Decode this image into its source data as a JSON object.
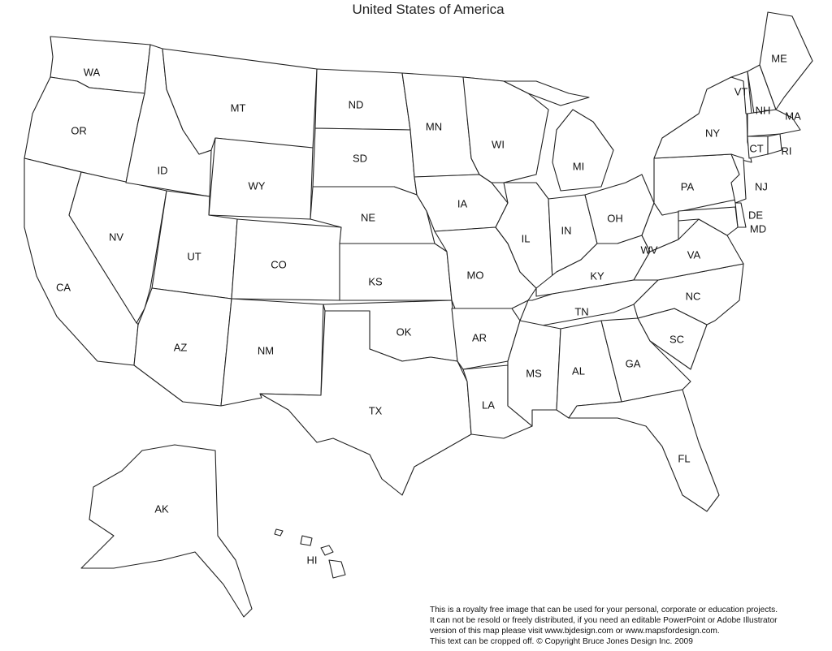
{
  "title": "United States of America",
  "states": [
    {
      "code": "WA"
    },
    {
      "code": "OR"
    },
    {
      "code": "CA"
    },
    {
      "code": "NV"
    },
    {
      "code": "ID"
    },
    {
      "code": "MT"
    },
    {
      "code": "WY"
    },
    {
      "code": "UT"
    },
    {
      "code": "CO"
    },
    {
      "code": "AZ"
    },
    {
      "code": "NM"
    },
    {
      "code": "ND"
    },
    {
      "code": "SD"
    },
    {
      "code": "NE"
    },
    {
      "code": "KS"
    },
    {
      "code": "OK"
    },
    {
      "code": "TX"
    },
    {
      "code": "MN"
    },
    {
      "code": "IA"
    },
    {
      "code": "MO"
    },
    {
      "code": "AR"
    },
    {
      "code": "LA"
    },
    {
      "code": "WI"
    },
    {
      "code": "IL"
    },
    {
      "code": "MI"
    },
    {
      "code": "IN"
    },
    {
      "code": "OH"
    },
    {
      "code": "KY"
    },
    {
      "code": "TN"
    },
    {
      "code": "MS"
    },
    {
      "code": "AL"
    },
    {
      "code": "GA"
    },
    {
      "code": "FL"
    },
    {
      "code": "SC"
    },
    {
      "code": "NC"
    },
    {
      "code": "VA"
    },
    {
      "code": "WV"
    },
    {
      "code": "PA"
    },
    {
      "code": "NY"
    },
    {
      "code": "VT"
    },
    {
      "code": "NH"
    },
    {
      "code": "ME"
    },
    {
      "code": "MA"
    },
    {
      "code": "CT"
    },
    {
      "code": "RI"
    },
    {
      "code": "NJ"
    },
    {
      "code": "DE"
    },
    {
      "code": "MD"
    },
    {
      "code": "AK"
    },
    {
      "code": "HI"
    }
  ],
  "footer": [
    "This is a royalty free image that can be used for your personal, corporate or education projects.",
    "It can not be resold or freely distributed, if you need an editable PowerPoint or Adobe Illustrator",
    "version of this map please visit www.bjdesign.com or www.mapsfordesign.com.",
    "This text can be cropped off.  © Copyright Bruce Jones Design Inc. 2009"
  ]
}
